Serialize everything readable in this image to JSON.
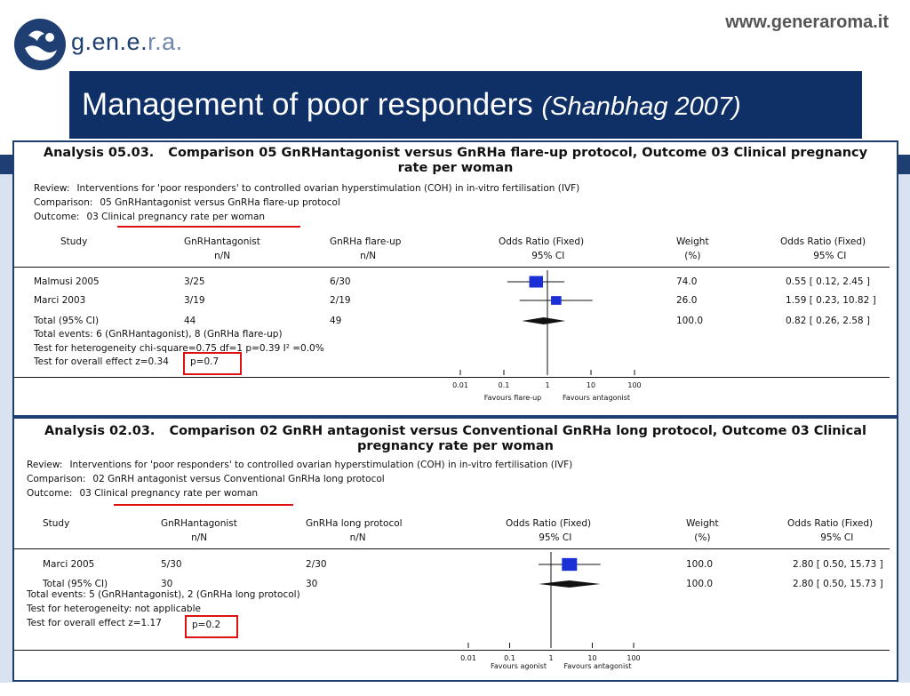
{
  "header": {
    "site_url": "www.generaroma.it",
    "logo_text_main": "g.en.e.",
    "logo_text_light": "r.a.",
    "title": "Management of poor responders",
    "citation": "(Shanbhag 2007)"
  },
  "chart_data": [
    {
      "type": "forest",
      "analysis_label": "Analysis 05.03.",
      "title": "Comparison 05 GnRHantagonist versus GnRHa flare-up protocol, Outcome 03 Clinical pregnancy rate per woman",
      "review_label": "Review:",
      "review": "Interventions for 'poor responders' to controlled ovarian hyperstimulation (COH) in in-vitro fertilisation (IVF)",
      "comparison_label": "Comparison:",
      "comparison": "05 GnRHantagonist versus GnRHa flare-up protocol",
      "outcome_label": "Outcome:",
      "outcome": "03 Clinical pregnancy rate per woman",
      "columns": {
        "study": "Study",
        "group1": "GnRHantagonist",
        "group1_sub": "n/N",
        "group2": "GnRHa flare-up",
        "group2_sub": "n/N",
        "or": "Odds Ratio (Fixed)",
        "or_sub": "95% CI",
        "weight": "Weight",
        "weight_sub": "(%)",
        "or_text": "Odds Ratio (Fixed)",
        "or_text_sub": "95% CI"
      },
      "studies": [
        {
          "name": "Malmusi 2005",
          "g1": "3/25",
          "g2": "6/30",
          "weight": "74.0",
          "ci_text": "0.55 [ 0.12, 2.45 ]",
          "or": 0.55,
          "lo": 0.12,
          "hi": 2.45,
          "weight_value": 74.0
        },
        {
          "name": "Marci 2003",
          "g1": "3/19",
          "g2": "2/19",
          "weight": "26.0",
          "ci_text": "1.59 [ 0.23, 10.82 ]",
          "or": 1.59,
          "lo": 0.23,
          "hi": 10.82,
          "weight_value": 26.0
        }
      ],
      "total": {
        "name": "Total (95% CI)",
        "g1": "44",
        "g2": "49",
        "weight": "100.0",
        "ci_text": "0.82 [ 0.26, 2.58 ]",
        "or": 0.82,
        "lo": 0.26,
        "hi": 2.58
      },
      "footnotes": [
        "Total events: 6 (GnRHantagonist), 8 (GnRHa flare-up)",
        "Test for heterogeneity chi-square=0.75 df=1 p=0.39 I² =0.0%",
        "Test for overall effect z=0.34"
      ],
      "highlight_p": "p=0.7",
      "x_scale": "log",
      "xlim": [
        0.01,
        100
      ],
      "ticks": [
        "0.01",
        "0.1",
        "1",
        "10",
        "100"
      ],
      "favours_left": "Favours flare-up",
      "favours_right": "Favours antagonist"
    },
    {
      "type": "forest",
      "analysis_label": "Analysis 02.03.",
      "title": "Comparison 02 GnRH antagonist versus Conventional GnRHa long protocol, Outcome 03 Clinical pregnancy rate per woman",
      "review_label": "Review:",
      "review": "Interventions for 'poor responders' to controlled ovarian hyperstimulation (COH) in in-vitro fertilisation (IVF)",
      "comparison_label": "Comparison:",
      "comparison": "02 GnRH antagonist versus Conventional GnRHa long protocol",
      "outcome_label": "Outcome:",
      "outcome": "03 Clinical pregnancy rate per woman",
      "columns": {
        "study": "Study",
        "group1": "GnRHantagonist",
        "group1_sub": "n/N",
        "group2": "GnRHa long protocol",
        "group2_sub": "n/N",
        "or": "Odds Ratio (Fixed)",
        "or_sub": "95% CI",
        "weight": "Weight",
        "weight_sub": "(%)",
        "or_text": "Odds Ratio (Fixed)",
        "or_text_sub": "95% CI"
      },
      "studies": [
        {
          "name": "Marci 2005",
          "g1": "5/30",
          "g2": "2/30",
          "weight": "100.0",
          "ci_text": "2.80 [ 0.50, 15.73 ]",
          "or": 2.8,
          "lo": 0.5,
          "hi": 15.73,
          "weight_value": 100.0
        }
      ],
      "total": {
        "name": "Total (95% CI)",
        "g1": "30",
        "g2": "30",
        "weight": "100.0",
        "ci_text": "2.80 [ 0.50, 15.73 ]",
        "or": 2.8,
        "lo": 0.5,
        "hi": 15.73
      },
      "footnotes": [
        "Total events: 5 (GnRHantagonist), 2 (GnRHa long protocol)",
        "Test for heterogeneity: not applicable",
        "Test for overall effect z=1.17"
      ],
      "highlight_p": "p=0.2",
      "x_scale": "log",
      "xlim": [
        0.01,
        100
      ],
      "ticks": [
        "0.01",
        "0.1",
        "1",
        "10",
        "100"
      ],
      "favours_left": "Favours agonist",
      "favours_right": "Favours antagonist"
    }
  ],
  "colors": {
    "banner": "#0f2f67",
    "marker": "#1a2fd6",
    "highlight": "#dd1111"
  }
}
